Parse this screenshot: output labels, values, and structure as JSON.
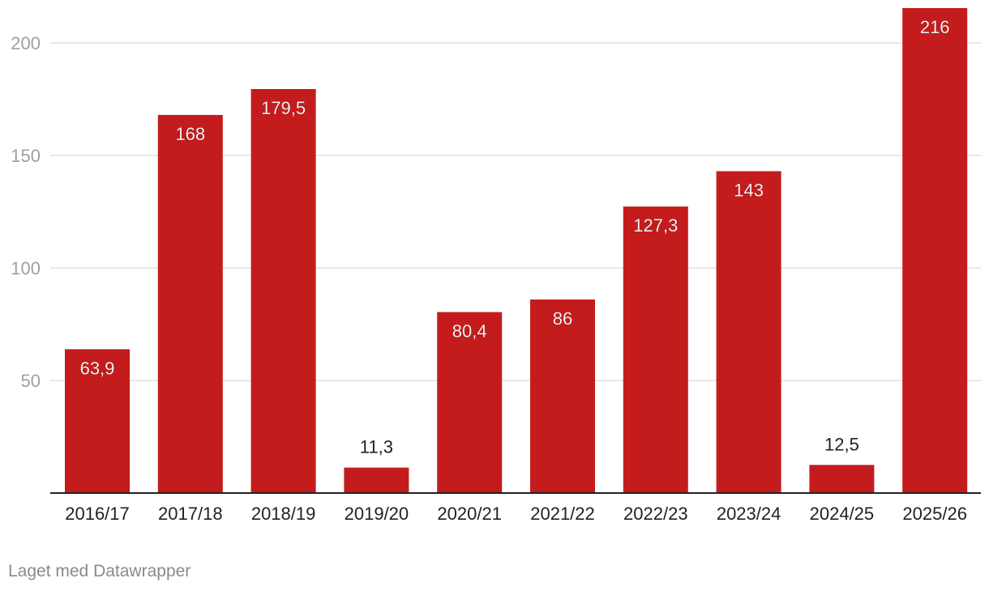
{
  "footer": {
    "credit": "Laget med Datawrapper"
  },
  "chart_data": {
    "type": "bar",
    "categories": [
      "2016/17",
      "2017/18",
      "2018/19",
      "2019/20",
      "2020/21",
      "2021/22",
      "2022/23",
      "2023/24",
      "2024/25",
      "2025/26"
    ],
    "values": [
      63.9,
      168,
      179.5,
      11.3,
      80.4,
      86,
      127.3,
      143,
      12.5,
      216
    ],
    "value_labels": [
      "63,9",
      "168",
      "179,5",
      "11,3",
      "80,4",
      "86",
      "127,3",
      "143",
      "12,5",
      "216"
    ],
    "y_ticks": [
      50,
      100,
      150,
      200
    ],
    "ylim": [
      0,
      200
    ],
    "grid": true,
    "legend": "none",
    "colors": {
      "bar": "#c41c1c",
      "grid": "#e0e0e0",
      "tick_label": "#a0a0a0",
      "axis": "#222222"
    }
  }
}
